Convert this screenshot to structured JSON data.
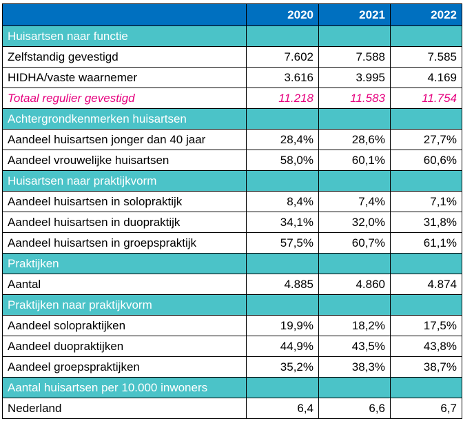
{
  "colors": {
    "header_bg": "#0070c0",
    "section_bg": "#4bc3c8",
    "total_text": "#e6007e"
  },
  "header": {
    "years": [
      "2020",
      "2021",
      "2022"
    ]
  },
  "rows": [
    {
      "type": "section",
      "label": "Huisartsen naar functie"
    },
    {
      "type": "data",
      "label": "Zelfstandig gevestigd",
      "values": [
        "7.602",
        "7.588",
        "7.585"
      ]
    },
    {
      "type": "data",
      "label": "HIDHA/vaste waarnemer",
      "values": [
        "3.616",
        "3.995",
        "4.169"
      ]
    },
    {
      "type": "total",
      "label": "Totaal regulier gevestigd",
      "values": [
        "11.218",
        "11.583",
        "11.754"
      ]
    },
    {
      "type": "section",
      "label": "Achtergrondkenmerken huisartsen"
    },
    {
      "type": "data",
      "label": "Aandeel huisartsen jonger dan 40 jaar",
      "values": [
        "28,4%",
        "28,6%",
        "27,7%"
      ]
    },
    {
      "type": "data",
      "label": "Aandeel vrouwelijke huisartsen",
      "values": [
        "58,0%",
        "60,1%",
        "60,6%"
      ]
    },
    {
      "type": "section",
      "label": "Huisartsen naar praktijkvorm"
    },
    {
      "type": "data",
      "label": "Aandeel huisartsen in solopraktijk",
      "values": [
        "8,4%",
        "7,4%",
        "7,1%"
      ]
    },
    {
      "type": "data",
      "label": "Aandeel huisartsen in duopraktijk",
      "values": [
        "34,1%",
        "32,0%",
        "31,8%"
      ]
    },
    {
      "type": "data",
      "label": "Aandeel huisartsen in groepspraktijk",
      "values": [
        "57,5%",
        "60,7%",
        "61,1%"
      ]
    },
    {
      "type": "section",
      "label": "Praktijken"
    },
    {
      "type": "data",
      "label": "Aantal",
      "values": [
        "4.885",
        "4.860",
        "4.874"
      ]
    },
    {
      "type": "section",
      "label": "Praktijken naar praktijkvorm"
    },
    {
      "type": "data",
      "label": "Aandeel solopraktijken",
      "values": [
        "19,9%",
        "18,2%",
        "17,5%"
      ]
    },
    {
      "type": "data",
      "label": "Aandeel duopraktijken",
      "values": [
        "44,9%",
        "43,5%",
        "43,8%"
      ]
    },
    {
      "type": "data",
      "label": "Aandeel groepspraktijken",
      "values": [
        "35,2%",
        "38,3%",
        "38,7%"
      ]
    },
    {
      "type": "section",
      "label": "Aantal huisartsen per 10.000 inwoners"
    },
    {
      "type": "data",
      "label": "Nederland",
      "values": [
        "6,4",
        "6,6",
        "6,7"
      ]
    }
  ]
}
